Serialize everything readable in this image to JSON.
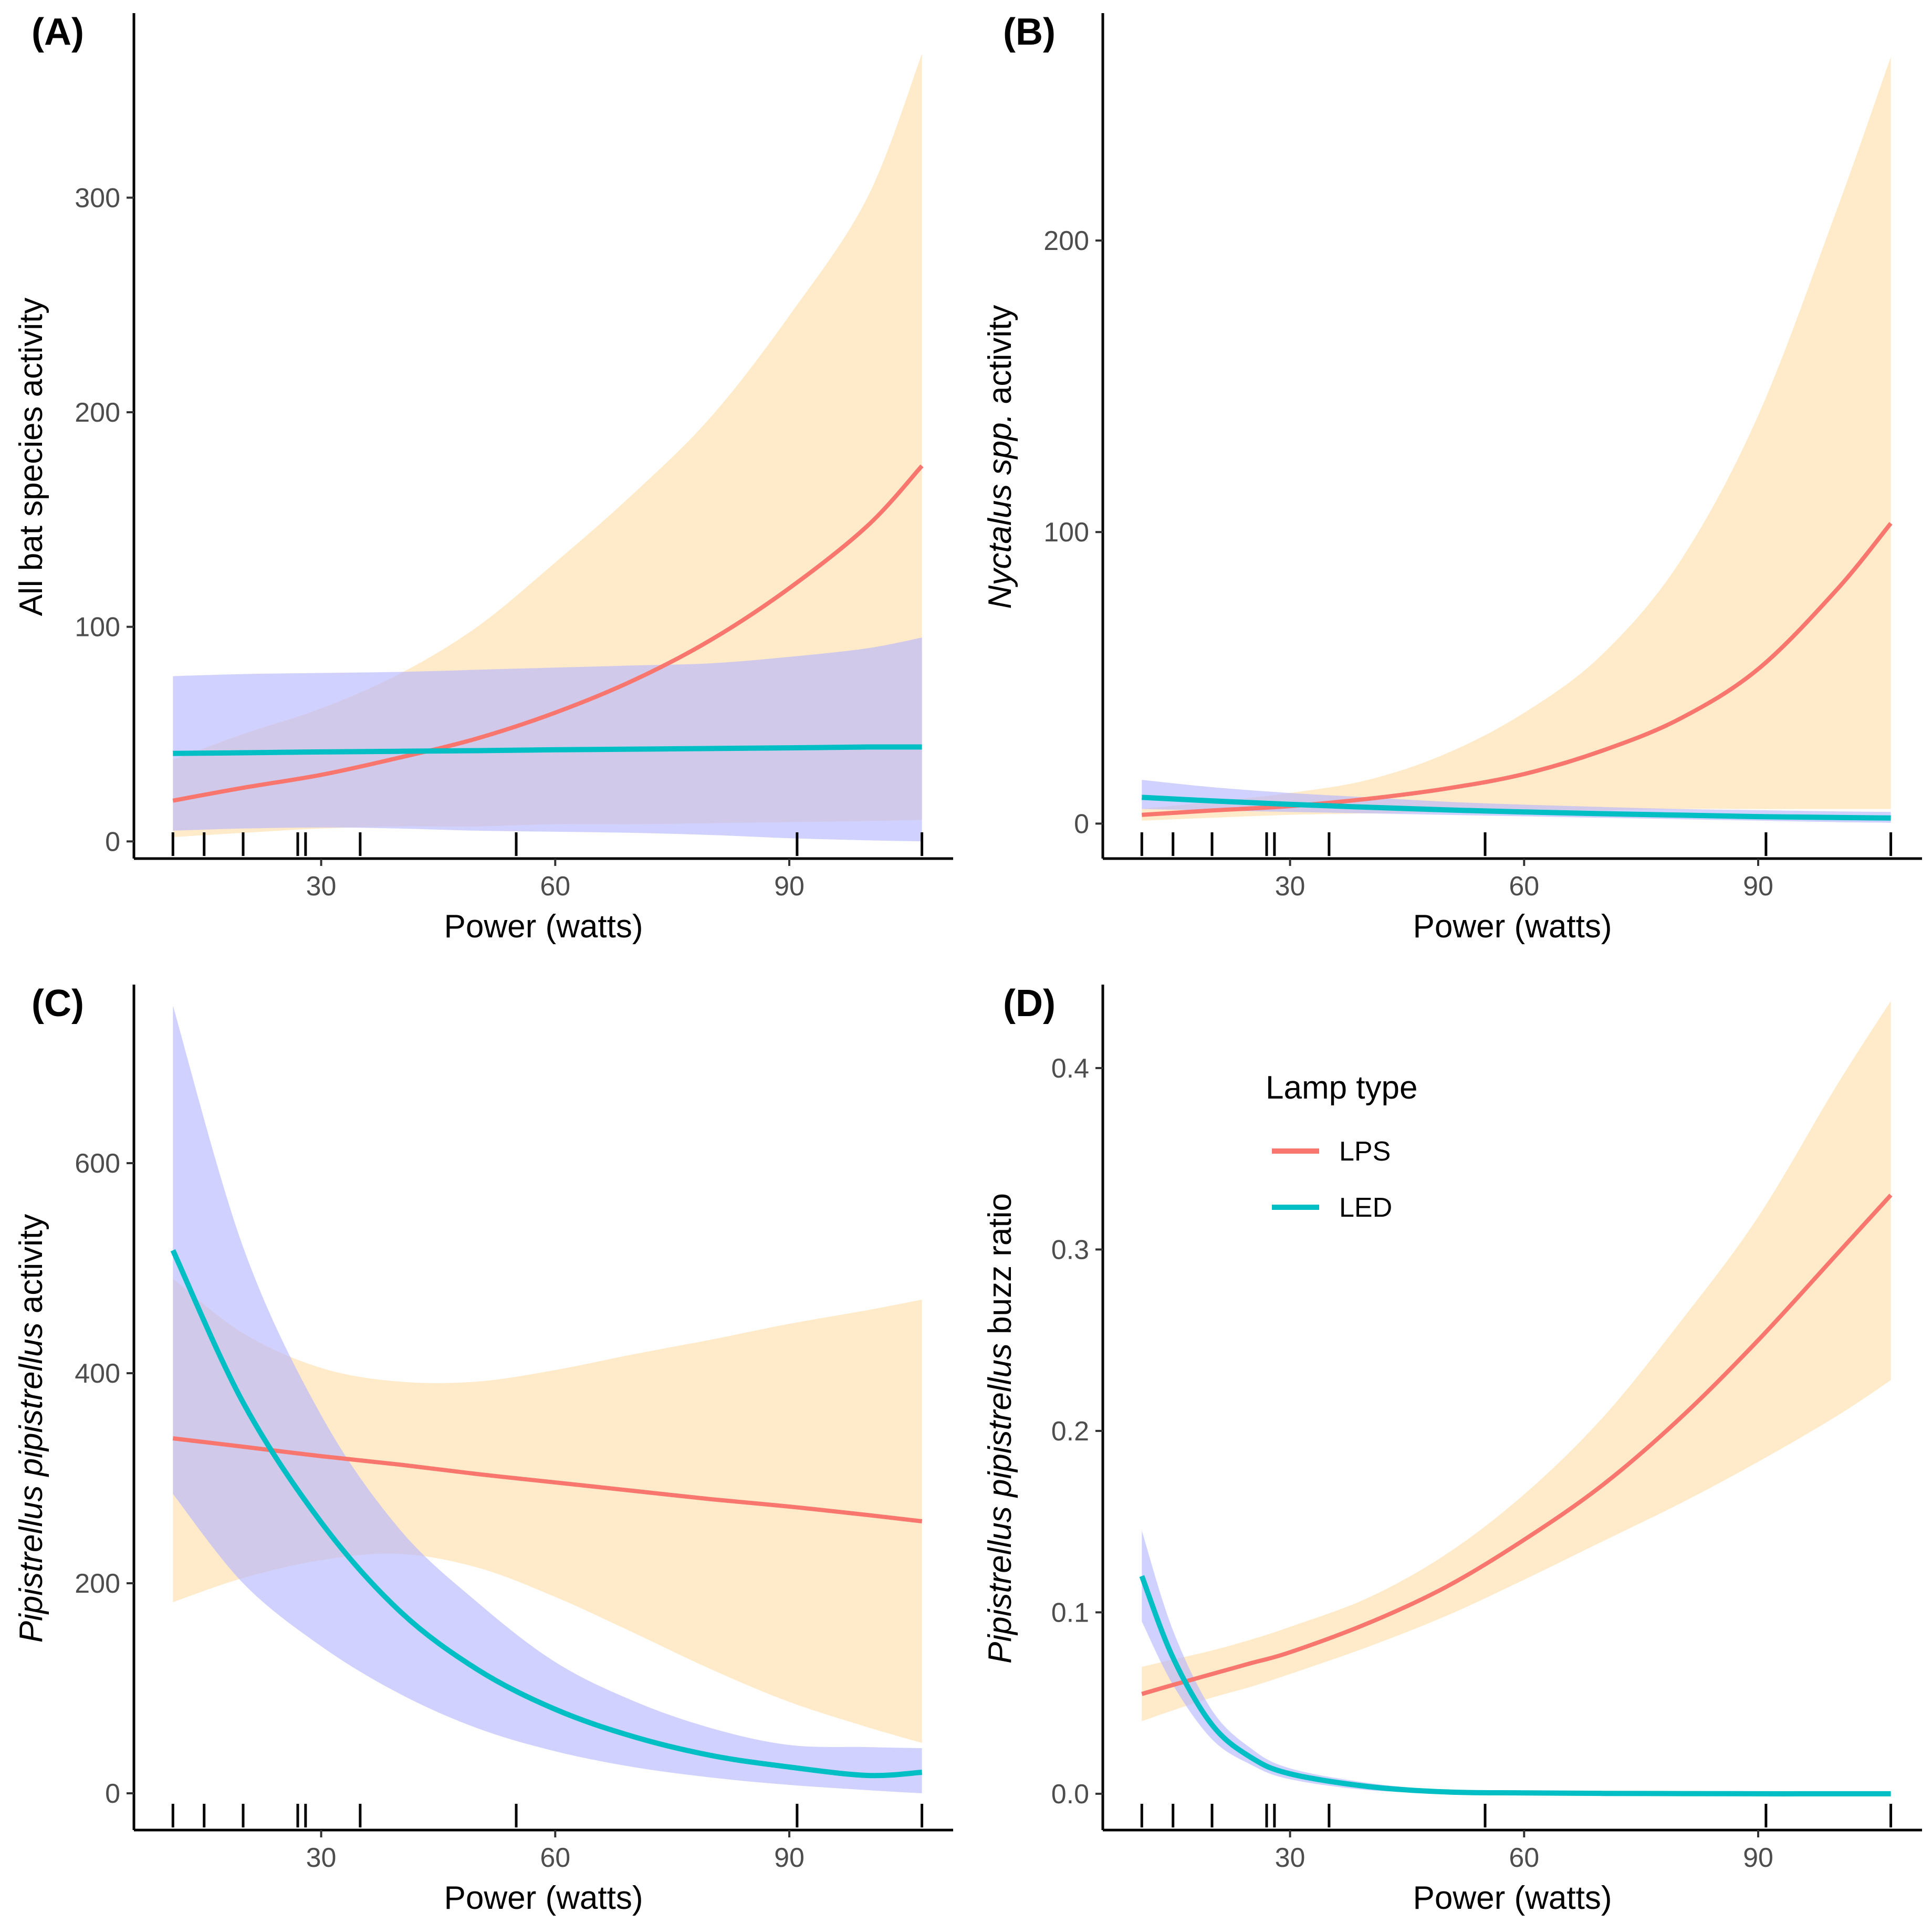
{
  "colors": {
    "lps_line": "#F8766D",
    "led_line": "#00BFC4",
    "lps_band": "#FFE6BF",
    "led_band": "#B3B3FF"
  },
  "legend": {
    "title": "Lamp type",
    "items": [
      {
        "label": "LPS",
        "color": "#F8766D"
      },
      {
        "label": "LED",
        "color": "#00BFC4"
      }
    ]
  },
  "rug_x": [
    11,
    15,
    20,
    27,
    28,
    35,
    55,
    91,
    107
  ],
  "chart_data": [
    {
      "type": "line",
      "panel": "(A)",
      "title": "(A)",
      "xlabel": "Power (watts)",
      "ylabel": "All bat species activity",
      "xlim": [
        6,
        111
      ],
      "ylim": [
        -8,
        386
      ],
      "xticks": [
        30,
        60,
        90
      ],
      "xtick_labels": [
        "30",
        "60",
        "90"
      ],
      "yticks": [
        0,
        100,
        200,
        300
      ],
      "ytick_labels": [
        "0",
        "100",
        "200",
        "300"
      ],
      "x": [
        11,
        20,
        30,
        40,
        50,
        60,
        70,
        80,
        90,
        100,
        107
      ],
      "series": [
        {
          "name": "LPS",
          "values": [
            19,
            25,
            31,
            39,
            48,
            60,
            75,
            94,
            118,
            147,
            175
          ],
          "lower": [
            2,
            4,
            6,
            7,
            7,
            8,
            8,
            8.5,
            9,
            9.5,
            10
          ],
          "upper": [
            38,
            50,
            62,
            78,
            100,
            130,
            162,
            198,
            245,
            300,
            367
          ]
        },
        {
          "name": "LED",
          "values": [
            41,
            41.3,
            41.7,
            42,
            42.3,
            42.7,
            43,
            43.3,
            43.6,
            44,
            44
          ],
          "lower": [
            5,
            6,
            6.5,
            6,
            5,
            4.5,
            4,
            3,
            1.5,
            0.5,
            0
          ],
          "upper": [
            77,
            78,
            78.5,
            79,
            80,
            81,
            82,
            83,
            86,
            90,
            95
          ]
        }
      ]
    },
    {
      "type": "line",
      "panel": "(B)",
      "title": "(B)",
      "xlabel": "Power (watts)",
      "ylabel": "Nyctalus spp. activity",
      "ylabel_main": "Nyctalus spp.",
      "ylabel_rest": " activity",
      "xlim": [
        6,
        111
      ],
      "ylim": [
        -12,
        278
      ],
      "xticks": [
        30,
        60,
        90
      ],
      "xtick_labels": [
        "30",
        "60",
        "90"
      ],
      "yticks": [
        0,
        100,
        200
      ],
      "ytick_labels": [
        "0",
        "100",
        "200"
      ],
      "x": [
        11,
        20,
        30,
        40,
        50,
        60,
        70,
        80,
        90,
        100,
        107
      ],
      "series": [
        {
          "name": "LPS",
          "values": [
            3,
            4.5,
            6,
            8.5,
            12,
            17,
            25,
            36,
            53,
            80,
            103
          ],
          "lower": [
            1,
            2,
            3,
            3.5,
            4,
            4.5,
            4.5,
            5,
            5,
            5,
            5
          ],
          "upper": [
            5,
            7.5,
            10.5,
            15,
            24,
            38,
            58,
            90,
            140,
            210,
            263
          ]
        },
        {
          "name": "LED",
          "values": [
            9,
            7.8,
            6.6,
            5.6,
            4.7,
            4,
            3.4,
            2.9,
            2.4,
            2.1,
            1.9
          ],
          "lower": [
            5,
            4.5,
            4,
            3.5,
            3,
            2.5,
            2,
            1.5,
            1,
            0.5,
            0.3
          ],
          "upper": [
            15,
            12.5,
            10.5,
            9,
            7.5,
            6.5,
            5.7,
            5,
            4.6,
            4.2,
            4
          ]
        }
      ]
    },
    {
      "type": "line",
      "panel": "(C)",
      "title": "(C)",
      "xlabel": "Power (watts)",
      "ylabel": "Pipistrellus pipistrellus activity",
      "ylabel_main": "Pipistrellus pipistrellus",
      "ylabel_rest": " activity",
      "xlim": [
        6,
        111
      ],
      "ylim": [
        -35,
        770
      ],
      "xticks": [
        30,
        60,
        90
      ],
      "xtick_labels": [
        "30",
        "60",
        "90"
      ],
      "yticks": [
        0,
        200,
        400,
        600
      ],
      "ytick_labels": [
        "0",
        "200",
        "400",
        "600"
      ],
      "x": [
        11,
        20,
        30,
        40,
        50,
        60,
        70,
        80,
        90,
        100,
        107
      ],
      "series": [
        {
          "name": "LPS",
          "values": [
            338,
            330,
            321,
            313,
            304,
            296,
            288,
            280,
            273,
            265,
            259
          ],
          "lower": [
            182,
            205,
            222,
            228,
            215,
            187,
            153,
            118,
            87,
            63,
            48
          ],
          "upper": [
            490,
            438,
            405,
            392,
            392,
            403,
            418,
            432,
            447,
            460,
            470
          ]
        },
        {
          "name": "LED",
          "values": [
            517,
            372,
            258,
            174,
            118,
            80,
            54,
            36,
            25,
            17,
            20
          ],
          "lower": [
            285,
            200,
            140,
            95,
            62,
            40,
            25,
            15,
            8,
            3,
            0
          ],
          "upper": [
            750,
            520,
            360,
            252,
            182,
            125,
            88,
            62,
            46,
            44,
            43
          ]
        }
      ]
    },
    {
      "type": "line",
      "panel": "(D)",
      "title": "(D)",
      "xlabel": "Power (watts)",
      "ylabel": "Pipistrellus pipistrellus buzz ratio",
      "ylabel_main": "Pipistrellus pipistrellus",
      "ylabel_rest": " buzz ratio",
      "xlim": [
        6,
        111
      ],
      "ylim": [
        -0.02,
        0.446
      ],
      "xticks": [
        30,
        60,
        90
      ],
      "xtick_labels": [
        "30",
        "60",
        "90"
      ],
      "yticks": [
        0.0,
        0.1,
        0.2,
        0.3,
        0.4
      ],
      "ytick_labels": [
        "0.0",
        "0.1",
        "0.2",
        "0.3",
        "0.4"
      ],
      "x": [
        11,
        15,
        20,
        25,
        30,
        40,
        50,
        60,
        70,
        80,
        90,
        100,
        107
      ],
      "series": [
        {
          "name": "LPS",
          "values": [
            0.055,
            0.06,
            0.066,
            0.072,
            0.078,
            0.094,
            0.114,
            0.14,
            0.17,
            0.207,
            0.25,
            0.297,
            0.33
          ],
          "lower": [
            0.04,
            0.046,
            0.053,
            0.059,
            0.066,
            0.081,
            0.098,
            0.118,
            0.139,
            0.16,
            0.183,
            0.208,
            0.228
          ],
          "upper": [
            0.07,
            0.074,
            0.079,
            0.085,
            0.092,
            0.108,
            0.132,
            0.165,
            0.207,
            0.26,
            0.318,
            0.39,
            0.437
          ]
        },
        {
          "name": "LED",
          "values": [
            0.12,
            0.075,
            0.038,
            0.02,
            0.011,
            0.004,
            0.001,
            0.0005,
            0.0002,
            0.0001,
            0.0,
            0.0,
            0.0
          ],
          "lower": [
            0.095,
            0.06,
            0.03,
            0.016,
            0.008,
            0.002,
            0.0005,
            0.0002,
            0.0,
            0.0,
            0.0,
            0.0,
            0.0
          ],
          "upper": [
            0.145,
            0.09,
            0.046,
            0.025,
            0.014,
            0.006,
            0.002,
            0.001,
            0.0005,
            0.0002,
            0.0001,
            0.0,
            0.0
          ]
        }
      ]
    }
  ]
}
